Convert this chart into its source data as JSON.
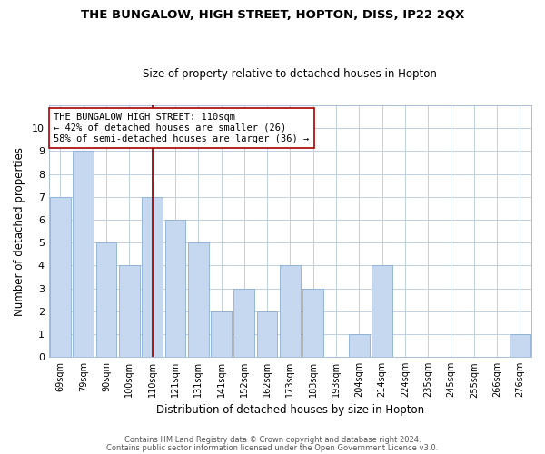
{
  "title": "THE BUNGALOW, HIGH STREET, HOPTON, DISS, IP22 2QX",
  "subtitle": "Size of property relative to detached houses in Hopton",
  "xlabel": "Distribution of detached houses by size in Hopton",
  "ylabel": "Number of detached properties",
  "bin_labels": [
    "69sqm",
    "79sqm",
    "90sqm",
    "100sqm",
    "110sqm",
    "121sqm",
    "131sqm",
    "141sqm",
    "152sqm",
    "162sqm",
    "173sqm",
    "183sqm",
    "193sqm",
    "204sqm",
    "214sqm",
    "224sqm",
    "235sqm",
    "245sqm",
    "255sqm",
    "266sqm",
    "276sqm"
  ],
  "counts": [
    7,
    9,
    5,
    4,
    7,
    6,
    5,
    2,
    3,
    2,
    4,
    3,
    0,
    1,
    4,
    0,
    0,
    0,
    0,
    0,
    1
  ],
  "bar_color": "#c5d8f0",
  "bar_edge_color": "#89afd4",
  "highlight_index": 4,
  "highlight_line_color": "#aa0000",
  "ylim": [
    0,
    11
  ],
  "yticks": [
    0,
    1,
    2,
    3,
    4,
    5,
    6,
    7,
    8,
    9,
    10,
    11
  ],
  "annotation_text": "THE BUNGALOW HIGH STREET: 110sqm\n← 42% of detached houses are smaller (26)\n58% of semi-detached houses are larger (36) →",
  "footer1": "Contains HM Land Registry data © Crown copyright and database right 2024.",
  "footer2": "Contains public sector information licensed under the Open Government Licence v3.0.",
  "bg_color": "#ffffff",
  "grid_color": "#c0d0e0",
  "annotation_box_color": "#ffffff",
  "annotation_box_edge": "#aa0000",
  "title_fontsize": 9.5,
  "subtitle_fontsize": 8.5
}
